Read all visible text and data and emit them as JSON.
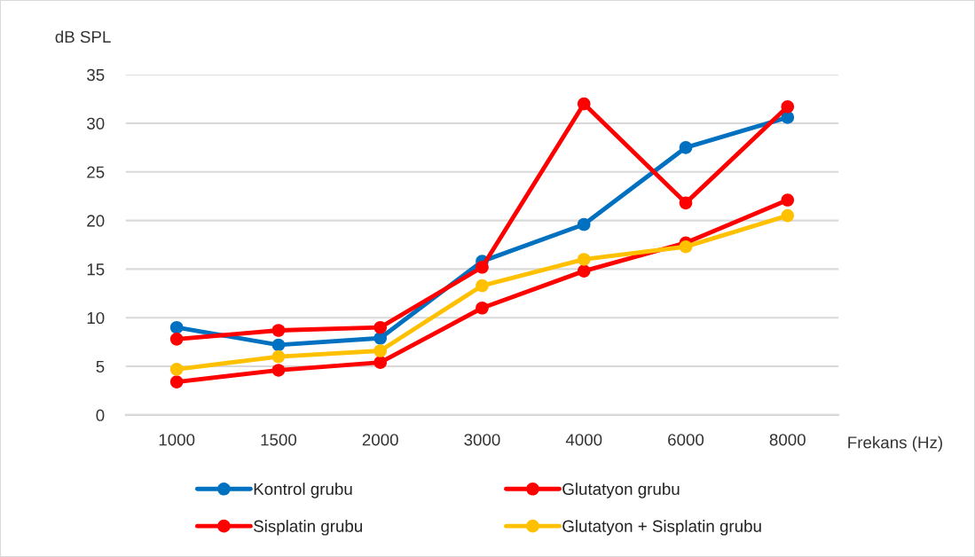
{
  "chart_data": {
    "type": "line",
    "xlabel": "Frekans (Hz)",
    "ylabel": "dB SPL",
    "categories": [
      "1000",
      "1500",
      "2000",
      "3000",
      "4000",
      "6000",
      "8000"
    ],
    "series": [
      {
        "name": "Kontrol grubu",
        "color": "#0070c0",
        "values": [
          9.0,
          7.2,
          7.9,
          15.8,
          19.6,
          27.5,
          30.6
        ]
      },
      {
        "name": "Glutatyon grubu",
        "color": "#ff0000",
        "values": [
          3.4,
          4.6,
          5.4,
          11.0,
          14.8,
          17.7,
          22.1
        ]
      },
      {
        "name": "Sisplatin grubu",
        "color": "#ff0000",
        "values": [
          7.8,
          8.7,
          9.0,
          15.2,
          32.0,
          21.8,
          31.7
        ]
      },
      {
        "name": "Glutatyon + Sisplatin grubu",
        "color": "#ffc000",
        "values": [
          4.7,
          6.0,
          6.6,
          13.3,
          16.0,
          17.3,
          20.5
        ]
      }
    ],
    "ylim": [
      0,
      35
    ],
    "yticks": [
      0,
      5,
      10,
      15,
      20,
      25,
      30,
      35
    ],
    "grid": "y",
    "legend": "bottom",
    "marker": "circle",
    "line_style": "solid"
  }
}
